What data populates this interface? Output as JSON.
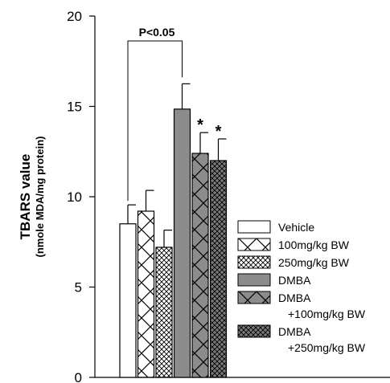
{
  "chart_data": {
    "type": "bar",
    "ylabel": "TBARS value",
    "ylabel_sub": "(nmole MDA/mg protein)",
    "ylim": [
      0,
      20
    ],
    "yticks": [
      "0",
      "5",
      "10",
      "15",
      "20"
    ],
    "grid": false,
    "legend_position": "right",
    "categories": [
      "Vehicle",
      "100mg/kg BW",
      "250mg/kg BW",
      "DMBA",
      "DMBA +100mg/kg BW",
      "DMBA +250mg/kg BW"
    ],
    "series": [
      {
        "values": [
          8.5,
          9.2,
          7.2,
          14.85,
          12.4,
          12.0
        ],
        "errors": [
          1.05,
          1.15,
          0.95,
          1.4,
          1.15,
          1.2
        ],
        "significance": [
          "",
          "",
          "",
          "",
          "*",
          "*"
        ]
      }
    ],
    "bracket": {
      "label": "P<0.05",
      "from": "Vehicle",
      "to": "DMBA"
    },
    "legend": [
      {
        "lines": [
          "Vehicle"
        ],
        "pattern": "white"
      },
      {
        "lines": [
          "100mg/kg BW"
        ],
        "pattern": "cross"
      },
      {
        "lines": [
          "250mg/kg BW"
        ],
        "pattern": "dense-cross"
      },
      {
        "lines": [
          "DMBA"
        ],
        "pattern": "gray"
      },
      {
        "lines": [
          "DMBA",
          "+100mg/kg BW"
        ],
        "pattern": "gray-cross"
      },
      {
        "lines": [
          "DMBA",
          "+250mg/kg BW"
        ],
        "pattern": "dark-dense-cross"
      }
    ],
    "colors": {
      "gray": "#8c8c8c",
      "dark_gray": "#7a7a7a",
      "axis": "#000000",
      "background": "#ffffff"
    }
  }
}
